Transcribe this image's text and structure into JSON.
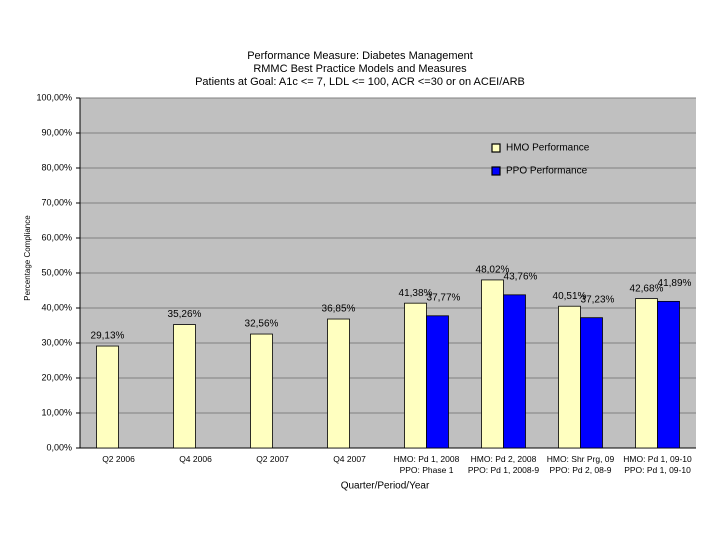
{
  "chart_data": {
    "type": "bar",
    "title": "Performance Measure:  Diabetes Management\nRMMC Best Practice Models and Measures\nPatients at Goal: A1c <= 7, LDL <= 100, ACR <=30 or on ACEI/ARB",
    "x_label": "Quarter/Period/Year",
    "y_label": "Percentage Compliance",
    "categories": [
      "Q2 2006",
      "Q4 2006",
      "Q2 2007",
      "Q4 2007",
      "HMO:  Pd 1, 2008\nPPO:  Phase 1",
      "HMO:  Pd 2, 2008\nPPO:  Pd 1, 2008-9",
      "HMO:  Shr Prg, 09\nPPO:  Pd 2, 08-9",
      "HMO:  Pd 1, 09-10\nPPO:  Pd 1, 09-10"
    ],
    "series": [
      {
        "name": "HMO Performance",
        "color": "#ffffc0",
        "values": [
          29.13,
          35.26,
          32.56,
          36.85,
          41.38,
          48.02,
          40.51,
          42.68
        ],
        "value_labels": [
          "29,13%",
          "35,26%",
          "32,56%",
          "36,85%",
          "41,38%",
          "48,02%",
          "40,51%",
          "42,68%"
        ]
      },
      {
        "name": "PPO Performance",
        "color": "#0000ff",
        "values": [
          null,
          null,
          null,
          null,
          37.77,
          43.76,
          37.23,
          41.89
        ],
        "value_labels": [
          null,
          null,
          null,
          null,
          "37,77%",
          "43,76%",
          "37,23%",
          "41,89%"
        ]
      }
    ],
    "ylim": [
      0,
      100
    ],
    "yticks": [
      {
        "value": 0,
        "label": "0,00%"
      },
      {
        "value": 10,
        "label": "10,00%"
      },
      {
        "value": 20,
        "label": "20,00%"
      },
      {
        "value": 30,
        "label": "30,00%"
      },
      {
        "value": 40,
        "label": "40,00%"
      },
      {
        "value": 50,
        "label": "50,00%"
      },
      {
        "value": 60,
        "label": "60,00%"
      },
      {
        "value": 70,
        "label": "70,00%"
      },
      {
        "value": 80,
        "label": "80,00%"
      },
      {
        "value": 90,
        "label": "90,00%"
      },
      {
        "value": 100,
        "label": "100,00%"
      }
    ],
    "grid": true,
    "legend": "upper right"
  }
}
